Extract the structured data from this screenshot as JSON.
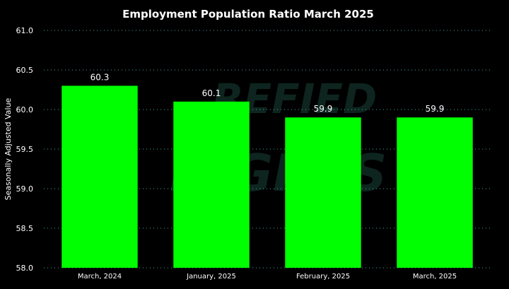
{
  "chart_data": {
    "type": "bar",
    "title": "Employment Population Ratio March 2025",
    "xlabel": "",
    "ylabel": "Seasonally Adjusted Value",
    "categories": [
      "March, 2024",
      "January, 2025",
      "February, 2025",
      "March, 2025"
    ],
    "values": [
      60.3,
      60.1,
      59.9,
      59.9
    ],
    "data_labels": [
      "60.3",
      "60.1",
      "59.9",
      "59.9"
    ],
    "ylim": [
      58.0,
      61.0
    ],
    "yticks": [
      "58.0",
      "58.5",
      "59.0",
      "59.5",
      "60.0",
      "60.5",
      "61.0"
    ],
    "grid": true,
    "legend": "none",
    "colors": {
      "background": "#000000",
      "bar": "#00ff00",
      "grid": "#4aa3a3",
      "text": "#ffffff"
    }
  }
}
